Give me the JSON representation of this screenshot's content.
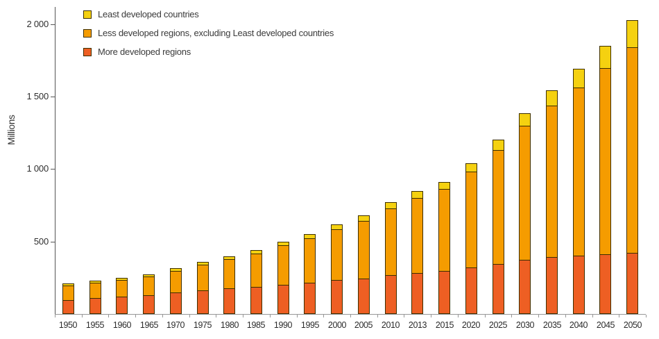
{
  "chart_data": {
    "type": "bar",
    "stacked": true,
    "title": "",
    "xlabel": "",
    "ylabel": "Millions",
    "grid": false,
    "legend_position": "top-left",
    "ylim": [
      0,
      2120
    ],
    "yticks": [
      500,
      1000,
      1500,
      2000
    ],
    "ytick_labels": [
      "500",
      "1 000",
      "1 500",
      "2 000"
    ],
    "categories": [
      "1950",
      "1955",
      "1960",
      "1965",
      "1970",
      "1975",
      "1980",
      "1985",
      "1990",
      "1995",
      "2000",
      "2005",
      "2010",
      "2013",
      "2015",
      "2020",
      "2025",
      "2030",
      "2035",
      "2040",
      "2045",
      "2050"
    ],
    "series": [
      {
        "name": "More developed regions",
        "color": "#ee5f23",
        "values": [
          94,
          105,
          115,
          127,
          145,
          160,
          170,
          182,
          199,
          214,
          231,
          243,
          265,
          280,
          290,
          318,
          345,
          369,
          386,
          398,
          408,
          417
        ]
      },
      {
        "name": "Less developed regions, excluding Least developed countries",
        "color": "#f59c00",
        "values": [
          100,
          106,
          116,
          128,
          151,
          178,
          203,
          231,
          271,
          305,
          349,
          398,
          458,
          519,
          566,
          660,
          785,
          925,
          1047,
          1161,
          1285,
          1420
        ]
      },
      {
        "name": "Least developed countries",
        "color": "#f5d110",
        "values": [
          8,
          9,
          9,
          10,
          12,
          14,
          16,
          18,
          21,
          24,
          27,
          32,
          38,
          42,
          45,
          54,
          66,
          81,
          100,
          123,
          150,
          181
        ]
      }
    ],
    "legend_reverse_series": true,
    "bar_border_color": "#3c2e00",
    "axis_color": "#979797"
  }
}
